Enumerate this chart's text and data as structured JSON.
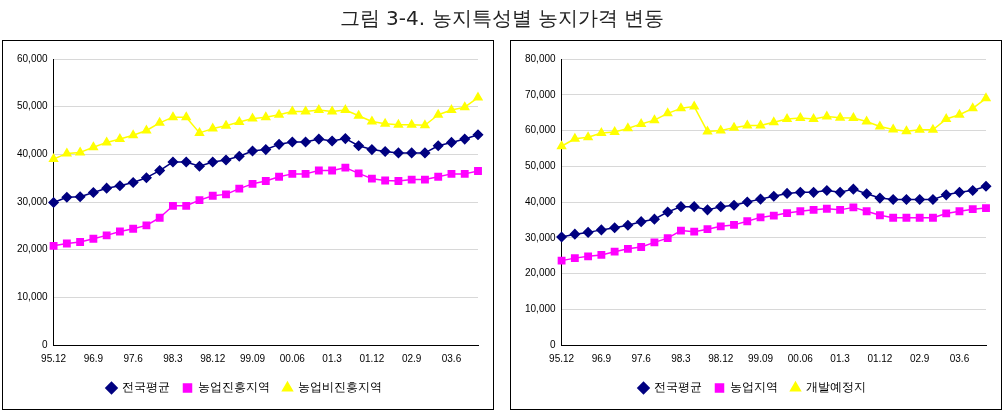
{
  "chart_data": [
    {
      "type": "line",
      "title": "그림 3-4. 농지특성별 농지가격 변동",
      "categories": [
        "95.12",
        null,
        null,
        "96.9",
        null,
        null,
        "97.6",
        null,
        null,
        "98.3",
        null,
        null,
        "98.12",
        null,
        null,
        "99.09",
        null,
        null,
        "00.06",
        null,
        null,
        "01.3",
        null,
        null,
        "01.12",
        null,
        null,
        "02.9",
        null,
        null,
        "03.6",
        null,
        null
      ],
      "series": [
        {
          "name": "전국평균",
          "color": "#000080",
          "marker": "diamond",
          "values": [
            29900,
            31000,
            31100,
            32000,
            32900,
            33400,
            34100,
            35100,
            36600,
            38400,
            38400,
            37500,
            38400,
            38800,
            39600,
            40700,
            41000,
            42100,
            42600,
            42600,
            43200,
            42800,
            43300,
            41800,
            41000,
            40600,
            40300,
            40300,
            40300,
            41800,
            42500,
            43200,
            44100
          ]
        },
        {
          "name": "농업진흥지역",
          "color": "#ff00ff",
          "marker": "square",
          "values": [
            20800,
            21300,
            21600,
            22300,
            23000,
            23800,
            24400,
            25100,
            26700,
            29200,
            29200,
            30400,
            31300,
            31600,
            32800,
            33800,
            34400,
            35300,
            35900,
            35900,
            36600,
            36600,
            37200,
            36000,
            34900,
            34500,
            34400,
            34700,
            34700,
            35300,
            35900,
            35900,
            36500
          ]
        },
        {
          "name": "농업비진흥지역",
          "color": "#ffff00",
          "marker": "triangle",
          "values": [
            39000,
            40200,
            40400,
            41500,
            42500,
            43200,
            44000,
            45000,
            46600,
            47800,
            47800,
            44500,
            45400,
            46000,
            46800,
            47500,
            47800,
            48300,
            49000,
            49000,
            49300,
            49000,
            49300,
            48100,
            46900,
            46400,
            46200,
            46200,
            46100,
            48300,
            49300,
            49900,
            51900
          ]
        }
      ],
      "ylim": [
        0,
        60000
      ],
      "yticks": [
        0,
        {
          "value": 10000,
          "label": "10,000"
        },
        {
          "value": 20000,
          "label": "20,000"
        },
        {
          "value": 30000,
          "label": "30,000"
        },
        {
          "value": 40000,
          "label": "40,000"
        },
        {
          "value": 50000,
          "label": "50,000"
        },
        {
          "value": 60000,
          "label": "60,000"
        }
      ],
      "grid": "y",
      "legend": "bottom"
    },
    {
      "type": "line",
      "categories": [
        "95.12",
        null,
        null,
        "96.9",
        null,
        null,
        "97.6",
        null,
        null,
        "98.3",
        null,
        null,
        "98.12",
        null,
        null,
        "99.09",
        null,
        null,
        "00.06",
        null,
        null,
        "01.3",
        null,
        null,
        "01.12",
        null,
        null,
        "02.9",
        null,
        null,
        "03.6",
        null,
        null
      ],
      "series": [
        {
          "name": "전국평균",
          "color": "#000080",
          "marker": "diamond",
          "values": [
            30200,
            31000,
            31500,
            32200,
            32800,
            33500,
            34500,
            35200,
            37200,
            38700,
            38700,
            37800,
            38700,
            39100,
            40000,
            40800,
            41600,
            42400,
            42700,
            42700,
            43200,
            42700,
            43600,
            42300,
            41100,
            40700,
            40700,
            40700,
            40700,
            42000,
            42700,
            43200,
            44400
          ]
        },
        {
          "name": "농업지역",
          "color": "#ff00ff",
          "marker": "square",
          "values": [
            23600,
            24300,
            24800,
            25200,
            26100,
            26900,
            27400,
            28700,
            29900,
            32000,
            31700,
            32400,
            33200,
            33600,
            34600,
            35700,
            36200,
            36900,
            37400,
            37800,
            38100,
            37800,
            38500,
            37400,
            36300,
            35600,
            35600,
            35600,
            35600,
            36800,
            37400,
            38000,
            38300
          ]
        },
        {
          "name": "개발예정지",
          "color": "#ffff00",
          "marker": "triangle",
          "values": [
            55600,
            57700,
            58100,
            59300,
            59600,
            60600,
            61800,
            62900,
            64800,
            66200,
            66700,
            59700,
            60000,
            60800,
            61400,
            61400,
            62300,
            63200,
            63500,
            63200,
            63900,
            63600,
            63500,
            62500,
            61100,
            60300,
            59800,
            60200,
            60200,
            63200,
            64400,
            66200,
            69000
          ]
        }
      ],
      "ylim": [
        0,
        80000
      ],
      "yticks": [
        0,
        {
          "value": 10000,
          "label": "10,000"
        },
        {
          "value": 20000,
          "label": "20,000"
        },
        {
          "value": 30000,
          "label": "30,000"
        },
        {
          "value": 40000,
          "label": "40,000"
        },
        {
          "value": 50000,
          "label": "50,000"
        },
        {
          "value": 60000,
          "label": "60,000"
        },
        {
          "value": 70000,
          "label": "70,000"
        },
        {
          "value": 80000,
          "label": "80,000"
        }
      ],
      "grid": "y",
      "legend": "bottom"
    }
  ]
}
